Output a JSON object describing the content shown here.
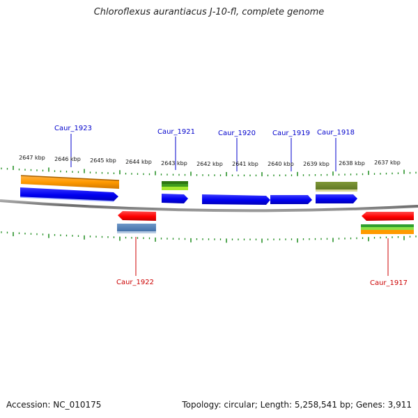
{
  "title": "Chloroflexus aurantiacus J-10-fl, complete genome",
  "footer": {
    "accession": "Accession: NC_010175",
    "topology": "Topology: circular; Length: 5,258,541 bp; Genes: 3,911"
  },
  "scale_labels": [
    "2647 kbp",
    "2646 kbp",
    "2645 kbp",
    "2644 kbp",
    "2643 kbp",
    "2642 kbp",
    "2641 kbp",
    "2640 kbp",
    "2639 kbp",
    "2638 kbp",
    "2637 kbp"
  ],
  "gene_labels": {
    "forward": [
      "Caur_1923",
      "Caur_1921",
      "Caur_1920",
      "Caur_1919",
      "Caur_1918"
    ],
    "reverse": [
      "Caur_1922",
      "Caur_1917"
    ]
  },
  "colors": {
    "forward_label": "#0000cc",
    "reverse_label": "#cc0000",
    "tick": "#1a8a1a",
    "backbone": "#888888",
    "cds": "#0000ff",
    "reverse_cds": "#ff0000"
  }
}
